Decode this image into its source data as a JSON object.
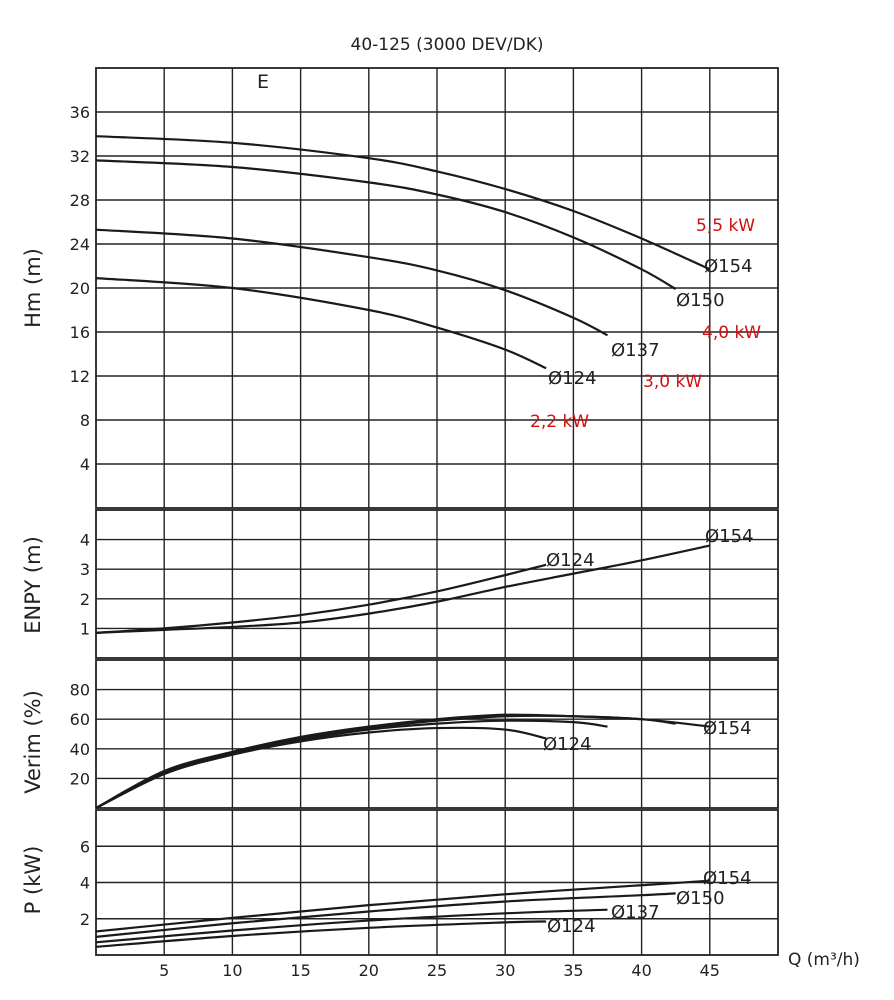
{
  "title": "40-125 (3000 DEV/DK)",
  "annotation": "E",
  "colors": {
    "power_label": "#d01010",
    "ink": "#1a1a1a"
  },
  "x_axis": {
    "label": "Q (m³/h)",
    "ticks": [
      "5",
      "10",
      "15",
      "20",
      "25",
      "30",
      "35",
      "40",
      "45"
    ]
  },
  "chart_data": [
    {
      "type": "line",
      "panel": "head",
      "ylabel": "Hm (m)",
      "xlim": [
        0,
        50
      ],
      "ylim": [
        0,
        40
      ],
      "yticks": [
        "4",
        "8",
        "12",
        "16",
        "20",
        "24",
        "28",
        "32",
        "36"
      ],
      "grid": true,
      "series": [
        {
          "name": "Ø154",
          "points": [
            [
              0,
              33.8
            ],
            [
              10,
              33.2
            ],
            [
              20,
              31.8
            ],
            [
              25,
              30.6
            ],
            [
              30,
              29.0
            ],
            [
              35,
              27.0
            ],
            [
              40,
              24.5
            ],
            [
              45,
              21.7
            ]
          ]
        },
        {
          "name": "Ø150",
          "points": [
            [
              0,
              31.6
            ],
            [
              10,
              31.0
            ],
            [
              20,
              29.6
            ],
            [
              25,
              28.5
            ],
            [
              30,
              26.9
            ],
            [
              35,
              24.6
            ],
            [
              40,
              21.7
            ],
            [
              42.5,
              19.9
            ]
          ]
        },
        {
          "name": "Ø137",
          "points": [
            [
              0,
              25.3
            ],
            [
              10,
              24.5
            ],
            [
              20,
              22.8
            ],
            [
              25,
              21.6
            ],
            [
              30,
              19.8
            ],
            [
              35,
              17.3
            ],
            [
              37.5,
              15.7
            ]
          ]
        },
        {
          "name": "Ø124",
          "points": [
            [
              0,
              20.9
            ],
            [
              10,
              20.0
            ],
            [
              20,
              18.0
            ],
            [
              25,
              16.4
            ],
            [
              30,
              14.4
            ],
            [
              33,
              12.7
            ]
          ]
        }
      ],
      "power_labels": [
        "5,5 kW",
        "4,0 kW",
        "3,0 kW",
        "2,2 kW"
      ]
    },
    {
      "type": "line",
      "panel": "npsh",
      "ylabel": "ENPY (m)",
      "xlim": [
        0,
        50
      ],
      "ylim": [
        0,
        5
      ],
      "yticks": [
        "1",
        "2",
        "3",
        "4"
      ],
      "grid": true,
      "series": [
        {
          "name": "Ø154",
          "points": [
            [
              0,
              0.85
            ],
            [
              5,
              0.95
            ],
            [
              10,
              1.05
            ],
            [
              15,
              1.2
            ],
            [
              20,
              1.5
            ],
            [
              25,
              1.9
            ],
            [
              30,
              2.4
            ],
            [
              35,
              2.85
            ],
            [
              40,
              3.3
            ],
            [
              45,
              3.8
            ]
          ]
        },
        {
          "name": "Ø124",
          "points": [
            [
              0,
              0.85
            ],
            [
              5,
              1.0
            ],
            [
              10,
              1.2
            ],
            [
              15,
              1.45
            ],
            [
              20,
              1.8
            ],
            [
              25,
              2.25
            ],
            [
              30,
              2.8
            ],
            [
              33,
              3.15
            ]
          ]
        }
      ]
    },
    {
      "type": "line",
      "panel": "efficiency",
      "ylabel": "Verim (%)",
      "xlim": [
        0,
        50
      ],
      "ylim": [
        0,
        100
      ],
      "yticks": [
        "20",
        "40",
        "60",
        "80"
      ],
      "grid": true,
      "series": [
        {
          "name": "Ø154",
          "points": [
            [
              0,
              0
            ],
            [
              5,
              25
            ],
            [
              10,
              38
            ],
            [
              15,
              48
            ],
            [
              20,
              55
            ],
            [
              25,
              60
            ],
            [
              30,
              63
            ],
            [
              35,
              62
            ],
            [
              40,
              60
            ],
            [
              45,
              55
            ]
          ]
        },
        {
          "name": "Ø150",
          "points": [
            [
              0,
              0
            ],
            [
              5,
              24
            ],
            [
              10,
              37
            ],
            [
              15,
              47
            ],
            [
              20,
              54
            ],
            [
              25,
              59
            ],
            [
              30,
              62
            ],
            [
              35,
              62
            ],
            [
              40,
              60
            ],
            [
              42.5,
              57
            ]
          ]
        },
        {
          "name": "Ø137",
          "points": [
            [
              0,
              0
            ],
            [
              5,
              23
            ],
            [
              10,
              37
            ],
            [
              15,
              46
            ],
            [
              20,
              53
            ],
            [
              25,
              57
            ],
            [
              30,
              59
            ],
            [
              35,
              58
            ],
            [
              37.5,
              55
            ]
          ]
        },
        {
          "name": "Ø124",
          "points": [
            [
              0,
              0
            ],
            [
              5,
              23
            ],
            [
              10,
              36
            ],
            [
              15,
              45
            ],
            [
              20,
              51
            ],
            [
              25,
              54
            ],
            [
              30,
              53
            ],
            [
              33,
              47
            ]
          ]
        }
      ]
    },
    {
      "type": "line",
      "panel": "power",
      "ylabel": "P (kW)",
      "xlim": [
        0,
        50
      ],
      "ylim": [
        0,
        8
      ],
      "yticks": [
        "2",
        "4",
        "6"
      ],
      "grid": true,
      "series": [
        {
          "name": "Ø154",
          "points": [
            [
              0,
              1.3
            ],
            [
              10,
              2.05
            ],
            [
              20,
              2.75
            ],
            [
              30,
              3.35
            ],
            [
              40,
              3.85
            ],
            [
              45,
              4.1
            ]
          ]
        },
        {
          "name": "Ø150",
          "points": [
            [
              0,
              1.0
            ],
            [
              10,
              1.75
            ],
            [
              20,
              2.4
            ],
            [
              30,
              2.95
            ],
            [
              40,
              3.3
            ],
            [
              42.5,
              3.4
            ]
          ]
        },
        {
          "name": "Ø137",
          "points": [
            [
              0,
              0.7
            ],
            [
              10,
              1.35
            ],
            [
              20,
              1.9
            ],
            [
              30,
              2.3
            ],
            [
              37.5,
              2.5
            ]
          ]
        },
        {
          "name": "Ø124",
          "points": [
            [
              0,
              0.45
            ],
            [
              10,
              1.05
            ],
            [
              20,
              1.5
            ],
            [
              30,
              1.8
            ],
            [
              33,
              1.85
            ]
          ]
        }
      ]
    }
  ]
}
